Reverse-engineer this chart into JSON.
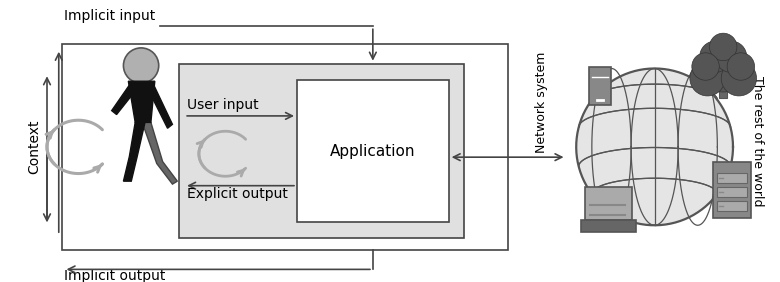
{
  "bg_color": "#ffffff",
  "figure_size": [
    7.8,
    2.82
  ],
  "dpi": 100,
  "text_color": "#000000",
  "arrow_color": "#444444",
  "box_color": "#444444",
  "gray_fill": "#e0e0e0",
  "gray_mid": "#888888",
  "gray_dark": "#333333",
  "labels": {
    "implicit_input": "Implicit input",
    "implicit_output": "Implicit output",
    "context": "Context",
    "user_input": "User input",
    "explicit_output": "Explicit output",
    "application": "Application",
    "network_system": "Network system",
    "rest_of_world": "The rest of the world"
  }
}
